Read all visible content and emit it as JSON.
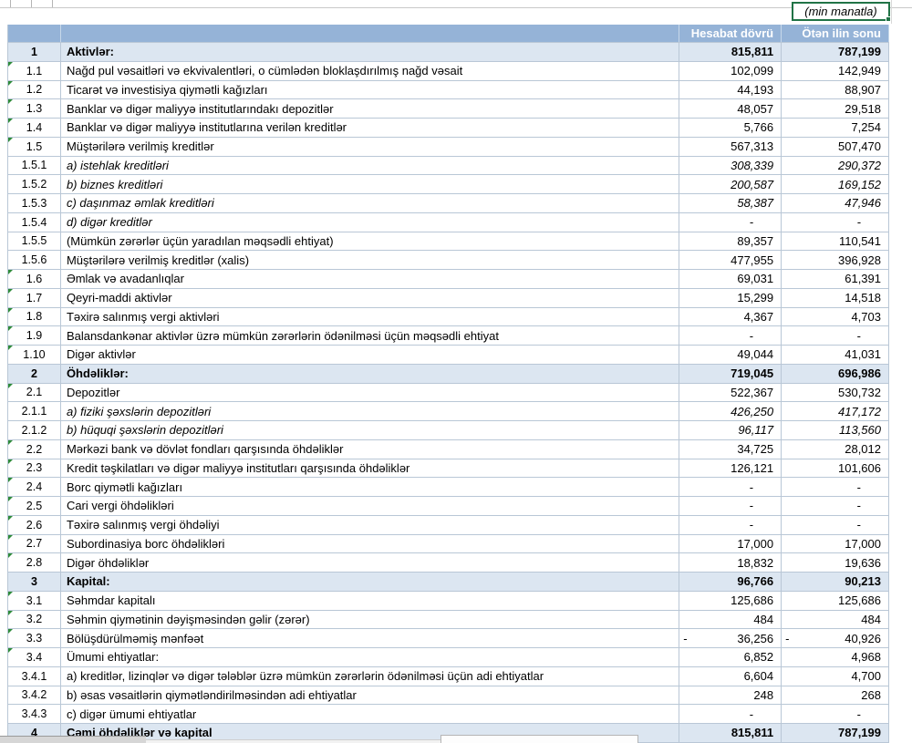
{
  "unit_note": "(min manatla)",
  "header": {
    "col_period": "Hesabat dövrü",
    "col_prev": "Ötən ilin sonu"
  },
  "colors": {
    "header_bg": "#95B3D7",
    "section_bg": "#DCE6F1",
    "grid": "#B9C7D6",
    "selection_green": "#217346",
    "flag_green": "#2E8B3A"
  },
  "rows": [
    {
      "code": "1",
      "label": "Aktivlər:",
      "v1": "815,811",
      "v2": "787,199",
      "style": "section",
      "flag": false,
      "neg": false
    },
    {
      "code": "1.1",
      "label": "Nağd pul vəsaitləri və ekvivalentləri, o cümlədən bloklaşdırılmış nağd vəsait",
      "v1": "102,099",
      "v2": "142,949",
      "style": "normal",
      "flag": true,
      "neg": false
    },
    {
      "code": "1.2",
      "label": "Ticarət və investisiya qiymətli kağızları",
      "v1": "44,193",
      "v2": "88,907",
      "style": "normal",
      "flag": true,
      "neg": false
    },
    {
      "code": "1.3",
      "label": "Banklar və digər maliyyə institutlarındakı depozitlər",
      "v1": "48,057",
      "v2": "29,518",
      "style": "normal",
      "flag": true,
      "neg": false
    },
    {
      "code": "1.4",
      "label": "Banklar və digər maliyyə institutlarına verilən kreditlər",
      "v1": "5,766",
      "v2": "7,254",
      "style": "normal",
      "flag": true,
      "neg": false
    },
    {
      "code": "1.5",
      "label": "Müştərilərə verilmiş kreditlər",
      "v1": "567,313",
      "v2": "507,470",
      "style": "normal",
      "flag": true,
      "neg": false
    },
    {
      "code": "1.5.1",
      "label": "a) istehlak kreditləri",
      "v1": "308,339",
      "v2": "290,372",
      "style": "italic",
      "flag": false,
      "neg": false
    },
    {
      "code": "1.5.2",
      "label": "b) biznes kreditləri",
      "v1": "200,587",
      "v2": "169,152",
      "style": "italic",
      "flag": false,
      "neg": false
    },
    {
      "code": "1.5.3",
      "label": "c) daşınmaz əmlak kreditləri",
      "v1": "58,387",
      "v2": "47,946",
      "style": "italic",
      "flag": false,
      "neg": false
    },
    {
      "code": "1.5.4",
      "label": "d) digər kreditlər",
      "v1": "-",
      "v2": "-",
      "style": "italic",
      "flag": false,
      "neg": false
    },
    {
      "code": "1.5.5",
      "label": "(Mümkün zərərlər üçün yaradılan məqsədli ehtiyat)",
      "v1": "89,357",
      "v2": "110,541",
      "style": "normal",
      "flag": false,
      "neg": false
    },
    {
      "code": "1.5.6",
      "label": "Müştərilərə verilmiş kreditlər (xalis)",
      "v1": "477,955",
      "v2": "396,928",
      "style": "normal",
      "flag": false,
      "neg": false
    },
    {
      "code": "1.6",
      "label": "Əmlak və avadanlıqlar",
      "v1": "69,031",
      "v2": "61,391",
      "style": "normal",
      "flag": true,
      "neg": false
    },
    {
      "code": "1.7",
      "label": "Qeyri-maddi aktivlər",
      "v1": "15,299",
      "v2": "14,518",
      "style": "normal",
      "flag": true,
      "neg": false
    },
    {
      "code": "1.8",
      "label": "Təxirə salınmış vergi aktivləri",
      "v1": "4,367",
      "v2": "4,703",
      "style": "normal",
      "flag": true,
      "neg": false
    },
    {
      "code": "1.9",
      "label": "Balansdankənar aktivlər üzrə mümkün zərərlərin ödənilməsi üçün məqsədli ehtiyat",
      "v1": "-",
      "v2": "-",
      "style": "normal",
      "flag": true,
      "neg": false
    },
    {
      "code": "1.10",
      "label": "Digər aktivlər",
      "v1": "49,044",
      "v2": "41,031",
      "style": "normal",
      "flag": true,
      "neg": false
    },
    {
      "code": "2",
      "label": "Öhdəliklər:",
      "v1": "719,045",
      "v2": "696,986",
      "style": "section",
      "flag": false,
      "neg": false
    },
    {
      "code": "2.1",
      "label": "Depozitlər",
      "v1": "522,367",
      "v2": "530,732",
      "style": "normal",
      "flag": true,
      "neg": false
    },
    {
      "code": "2.1.1",
      "label": "a) fiziki şəxslərin depozitləri",
      "v1": "426,250",
      "v2": "417,172",
      "style": "italic",
      "flag": false,
      "neg": false
    },
    {
      "code": "2.1.2",
      "label": "b) hüquqi şəxslərin depozitləri",
      "v1": "96,117",
      "v2": "113,560",
      "style": "italic",
      "flag": false,
      "neg": false
    },
    {
      "code": "2.2",
      "label": "Mərkəzi bank və dövlət fondları qarşısında öhdəliklər",
      "v1": "34,725",
      "v2": "28,012",
      "style": "normal",
      "flag": true,
      "neg": false
    },
    {
      "code": "2.3",
      "label": "Kredit təşkilatları və digər maliyyə institutları qarşısında öhdəliklər",
      "v1": "126,121",
      "v2": "101,606",
      "style": "normal",
      "flag": true,
      "neg": false
    },
    {
      "code": "2.4",
      "label": "Borc qiymətli kağızları",
      "v1": "-",
      "v2": "-",
      "style": "normal",
      "flag": true,
      "neg": false
    },
    {
      "code": "2.5",
      "label": "Cari vergi öhdəlikləri",
      "v1": "-",
      "v2": "-",
      "style": "normal",
      "flag": true,
      "neg": false
    },
    {
      "code": "2.6",
      "label": "Təxirə salınmış vergi öhdəliyi",
      "v1": "-",
      "v2": "-",
      "style": "normal",
      "flag": true,
      "neg": false
    },
    {
      "code": "2.7",
      "label": "Subordinasiya borc öhdəlikləri",
      "v1": "17,000",
      "v2": "17,000",
      "style": "normal",
      "flag": true,
      "neg": false
    },
    {
      "code": "2.8",
      "label": "Digər öhdəliklər",
      "v1": "18,832",
      "v2": "19,636",
      "style": "normal",
      "flag": true,
      "neg": false
    },
    {
      "code": "3",
      "label": "Kapital:",
      "v1": "96,766",
      "v2": "90,213",
      "style": "section",
      "flag": false,
      "neg": false
    },
    {
      "code": "3.1",
      "label": "Səhmdar kapitalı",
      "v1": "125,686",
      "v2": "125,686",
      "style": "normal",
      "flag": true,
      "neg": false
    },
    {
      "code": "3.2",
      "label": "Səhmin qiymətinin dəyişməsindən gəlir (zərər)",
      "v1": "484",
      "v2": "484",
      "style": "normal",
      "flag": true,
      "neg": false
    },
    {
      "code": "3.3",
      "label": "Bölüşdürülməmiş mənfəət",
      "v1": "36,256",
      "v2": "40,926",
      "style": "normal",
      "flag": true,
      "neg": true
    },
    {
      "code": "3.4",
      "label": "Ümumi ehtiyatlar:",
      "v1": "6,852",
      "v2": "4,968",
      "style": "normal",
      "flag": true,
      "neg": false
    },
    {
      "code": "3.4.1",
      "label": "a) kreditlər, lizinqlər və digər tələblər üzrə mümkün zərərlərin ödənilməsi üçün adi ehtiyatlar",
      "v1": "6,604",
      "v2": "4,700",
      "style": "normal",
      "flag": false,
      "neg": false
    },
    {
      "code": "3.4.2",
      "label": "b) əsas vəsaitlərin qiymətləndirilməsindən adi ehtiyatlar",
      "v1": "248",
      "v2": "268",
      "style": "normal",
      "flag": false,
      "neg": false
    },
    {
      "code": "3.4.3",
      "label": "c) digər ümumi ehtiyatlar",
      "v1": "-",
      "v2": "-",
      "style": "normal",
      "flag": false,
      "neg": false
    },
    {
      "code": "4",
      "label": "Cəmi öhdəliklər və kapital",
      "v1": "815,811",
      "v2": "787,199",
      "style": "section",
      "flag": false,
      "neg": false
    }
  ]
}
